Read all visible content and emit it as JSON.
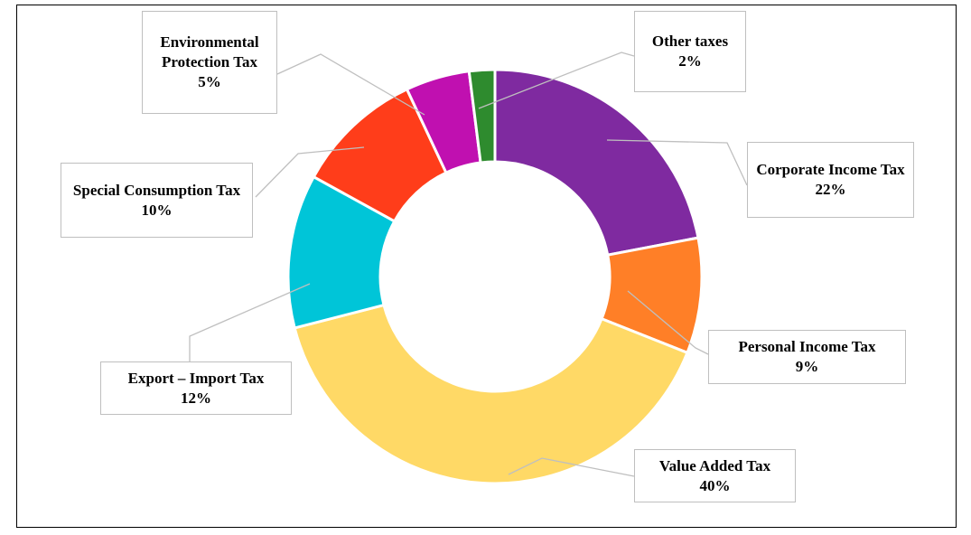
{
  "chart_data": {
    "type": "donut",
    "categories": [
      "Corporate Income Tax",
      "Personal Income Tax",
      "Value Added Tax",
      "Export – Import Tax",
      "Special Consumption Tax",
      "Environmental Protection Tax",
      "Other taxes"
    ],
    "values": [
      22,
      9,
      40,
      12,
      10,
      5,
      2
    ],
    "value_labels": [
      "22%",
      "9%",
      "40%",
      "12%",
      "10%",
      "5%",
      "2%"
    ],
    "colors": [
      "#7f2aa0",
      "#ff7f27",
      "#ffd966",
      "#00c5d8",
      "#ff3d1a",
      "#c010b0",
      "#2e8b2e"
    ]
  }
}
